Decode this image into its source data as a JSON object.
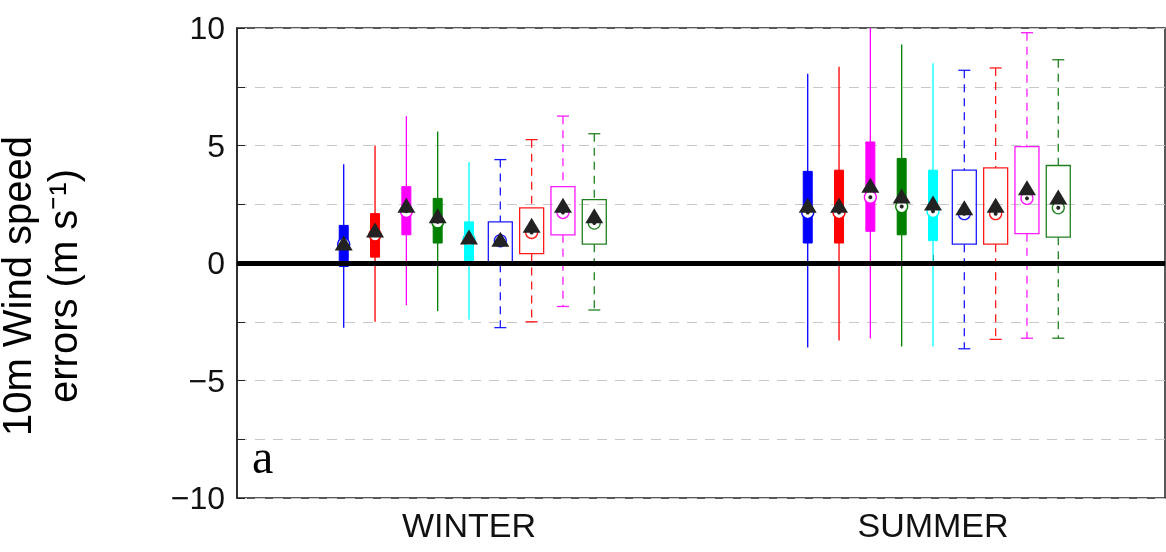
{
  "chart_data": {
    "type": "box",
    "ylabel": "10m Wind speed errors (m s⁻¹)",
    "categories": [
      "WINTER",
      "SUMMER"
    ],
    "ylim": [
      -10,
      10
    ],
    "yticks": [
      -10,
      {
        "value": -7.5,
        "label": null
      },
      -5,
      {
        "value": -2.5,
        "label": null
      },
      0,
      {
        "value": 2.5,
        "label": null
      },
      5,
      {
        "value": 7.5,
        "label": null
      },
      10
    ],
    "grid": "y",
    "marker": "triangle",
    "annotations": [
      "a"
    ],
    "ref_lines": [
      {
        "axis": "y",
        "value": 0,
        "color": "#000000"
      }
    ],
    "series": [
      {
        "color": "#0000ff",
        "line_style": "solid",
        "boxes": [
          {
            "low": -2.75,
            "q1": -0.15,
            "median": 0.8,
            "q3": 1.6,
            "high": 4.2,
            "mean": 0.75
          },
          {
            "low": -3.6,
            "q1": 0.85,
            "median": 2.15,
            "q3": 3.9,
            "high": 8.05,
            "mean": 2.35
          }
        ]
      },
      {
        "color": "#ff0000",
        "line_style": "solid",
        "boxes": [
          {
            "low": -2.5,
            "q1": 0.25,
            "median": 1.2,
            "q3": 2.1,
            "high": 5,
            "mean": 1.3
          },
          {
            "low": -3.3,
            "q1": 0.85,
            "median": 2.15,
            "q3": 3.95,
            "high": 8.35,
            "mean": 2.35
          }
        ]
      },
      {
        "color": "#ff00ff",
        "line_style": "solid",
        "boxes": [
          {
            "low": -1.8,
            "q1": 1.2,
            "median": 2.2,
            "q3": 3.25,
            "high": 6.25,
            "mean": 2.35
          },
          {
            "low": -3.2,
            "q1": 1.35,
            "median": 2.8,
            "q3": 5.15,
            "high": 10,
            "mean": 3.2
          }
        ]
      },
      {
        "color": "#008000",
        "line_style": "solid",
        "boxes": [
          {
            "low": -2.05,
            "q1": 0.85,
            "median": 1.75,
            "q3": 2.75,
            "high": 5.6,
            "mean": 1.9
          },
          {
            "low": -3.55,
            "q1": 1.2,
            "median": 2.4,
            "q3": 4.45,
            "high": 9.3,
            "mean": 2.75
          }
        ]
      },
      {
        "color": "#00ffff",
        "line_style": "solid",
        "boxes": [
          {
            "low": -2.4,
            "q1": 0.1,
            "median": 1,
            "q3": 1.75,
            "high": 4.3,
            "mean": 1
          },
          {
            "low": -3.55,
            "q1": 0.95,
            "median": 2.2,
            "q3": 3.95,
            "high": 8.5,
            "mean": 2.45
          }
        ]
      },
      {
        "color": "#1a1aff",
        "line_style": "dashed",
        "boxes": [
          {
            "low": -2.75,
            "q1": -0.05,
            "median": 0.95,
            "q3": 1.75,
            "high": 4.4,
            "mean": 0.9
          },
          {
            "low": -3.65,
            "q1": 0.8,
            "median": 2.1,
            "q3": 3.95,
            "high": 8.2,
            "mean": 2.25
          }
        ]
      },
      {
        "color": "#ff1a1a",
        "line_style": "dashed",
        "boxes": [
          {
            "low": -2.5,
            "q1": 0.4,
            "median": 1.3,
            "q3": 2.35,
            "high": 5.25,
            "mean": 1.5
          },
          {
            "low": -3.25,
            "q1": 0.8,
            "median": 2.1,
            "q3": 4.05,
            "high": 8.3,
            "mean": 2.35
          }
        ]
      },
      {
        "color": "#ff1aff",
        "line_style": "dashed",
        "boxes": [
          {
            "low": -1.85,
            "q1": 1.2,
            "median": 2.15,
            "q3": 3.25,
            "high": 6.25,
            "mean": 2.35
          },
          {
            "low": -3.2,
            "q1": 1.25,
            "median": 2.75,
            "q3": 4.95,
            "high": 9.8,
            "mean": 3.1
          }
        ]
      },
      {
        "color": "#208020",
        "line_style": "dashed",
        "boxes": [
          {
            "low": -2,
            "q1": 0.8,
            "median": 1.7,
            "q3": 2.7,
            "high": 5.5,
            "mean": 1.9
          },
          {
            "low": -3.2,
            "q1": 1.1,
            "median": 2.35,
            "q3": 4.15,
            "high": 8.65,
            "mean": 2.7
          }
        ]
      }
    ]
  }
}
